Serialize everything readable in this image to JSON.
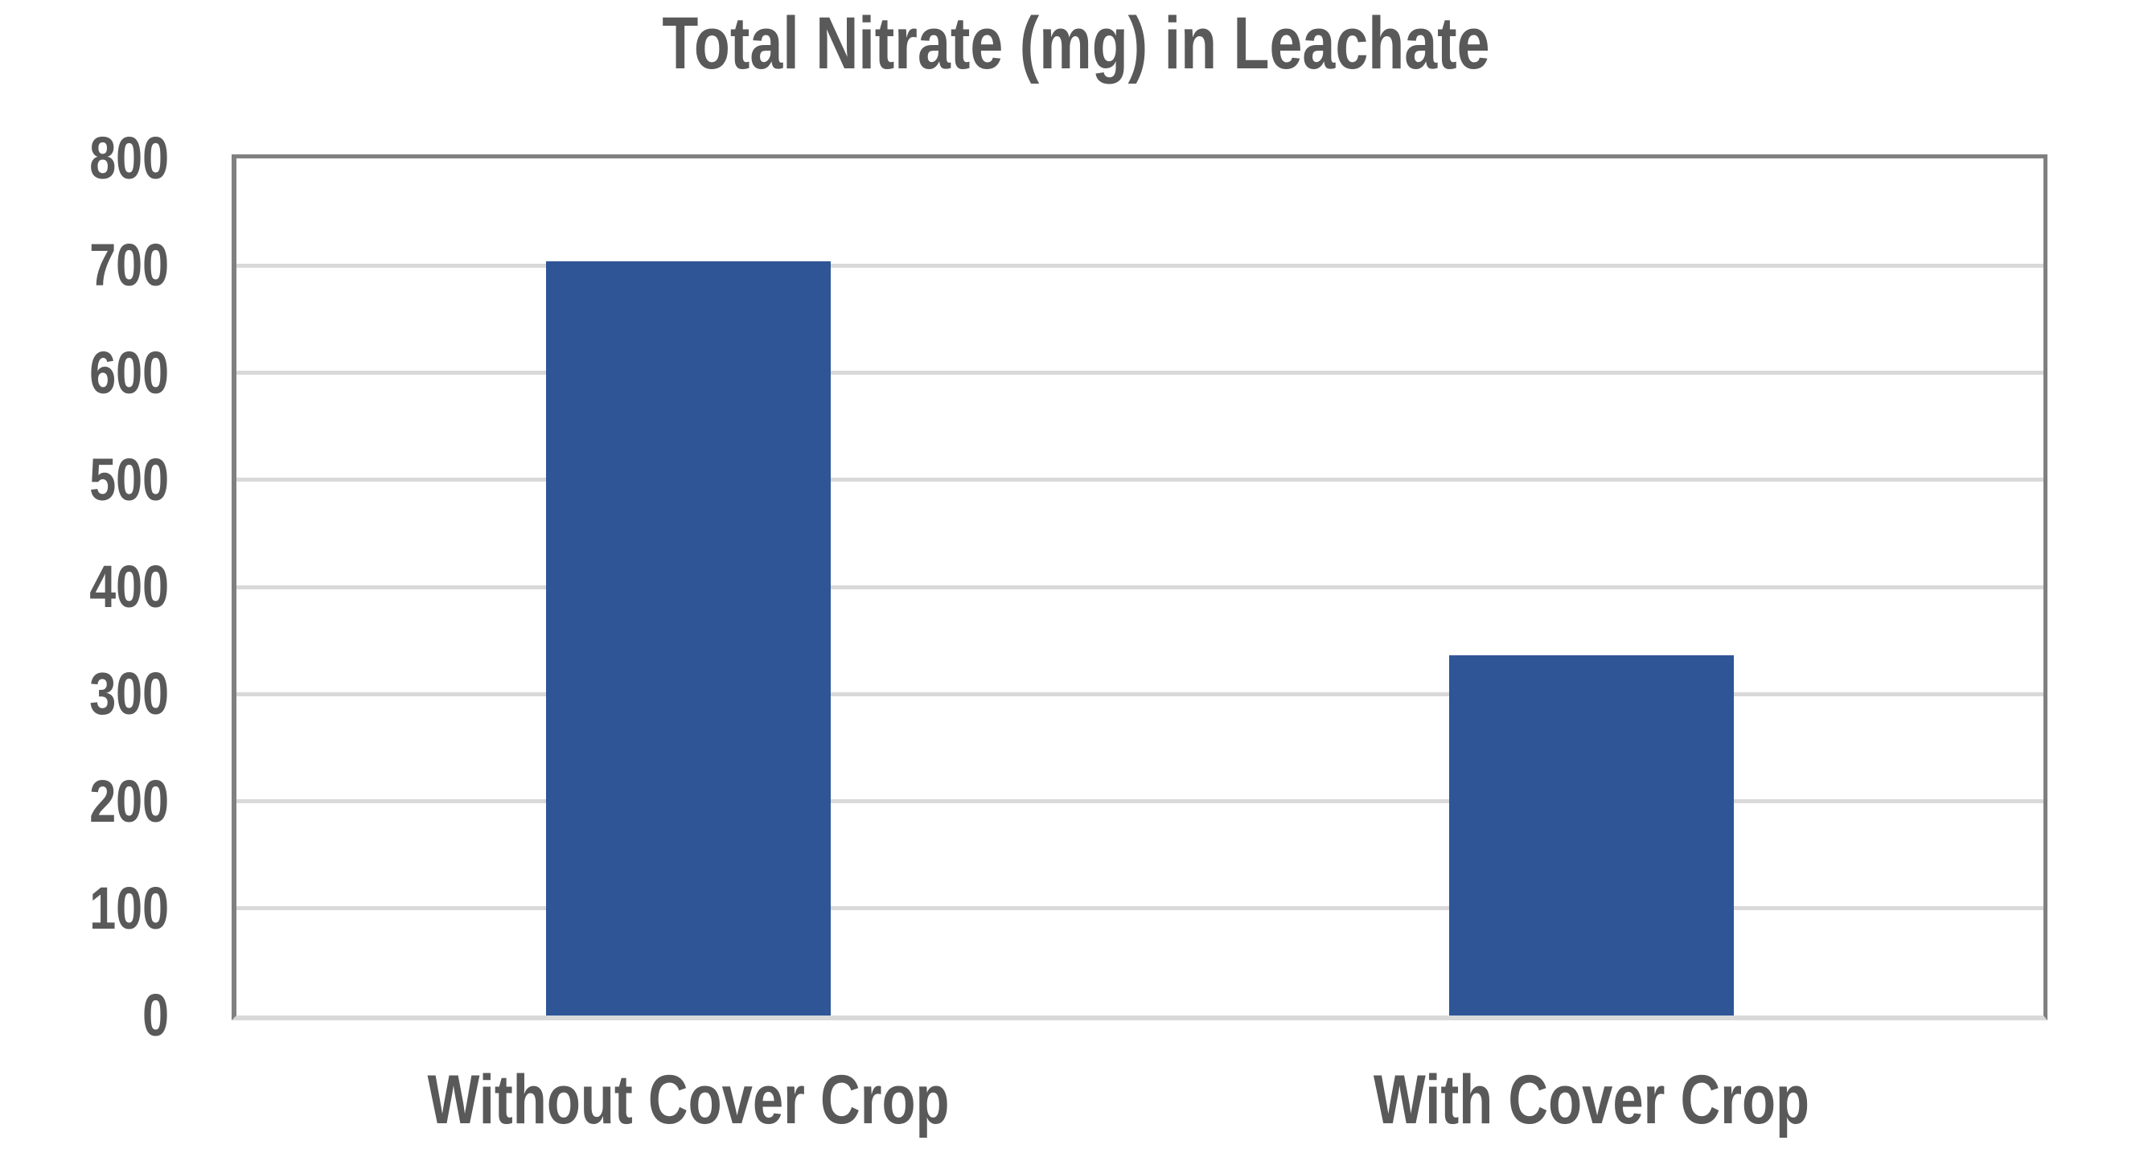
{
  "chart_data": {
    "type": "bar",
    "title": "Total Nitrate (mg) in Leachate",
    "categories": [
      "Without Cover Crop",
      "With Cover Crop"
    ],
    "values": [
      704,
      336
    ],
    "xlabel": "",
    "ylabel": "",
    "ylim": [
      0,
      800
    ],
    "yticks": [
      0,
      100,
      200,
      300,
      400,
      500,
      600,
      700,
      800
    ],
    "grid": true,
    "legend": false,
    "colors": {
      "bar": "#2F5597",
      "text": "#595959",
      "gridline": "#D9D9D9",
      "plot_border": "#808080",
      "baseline": "#D9D9D9",
      "background": "#FFFFFF"
    }
  }
}
